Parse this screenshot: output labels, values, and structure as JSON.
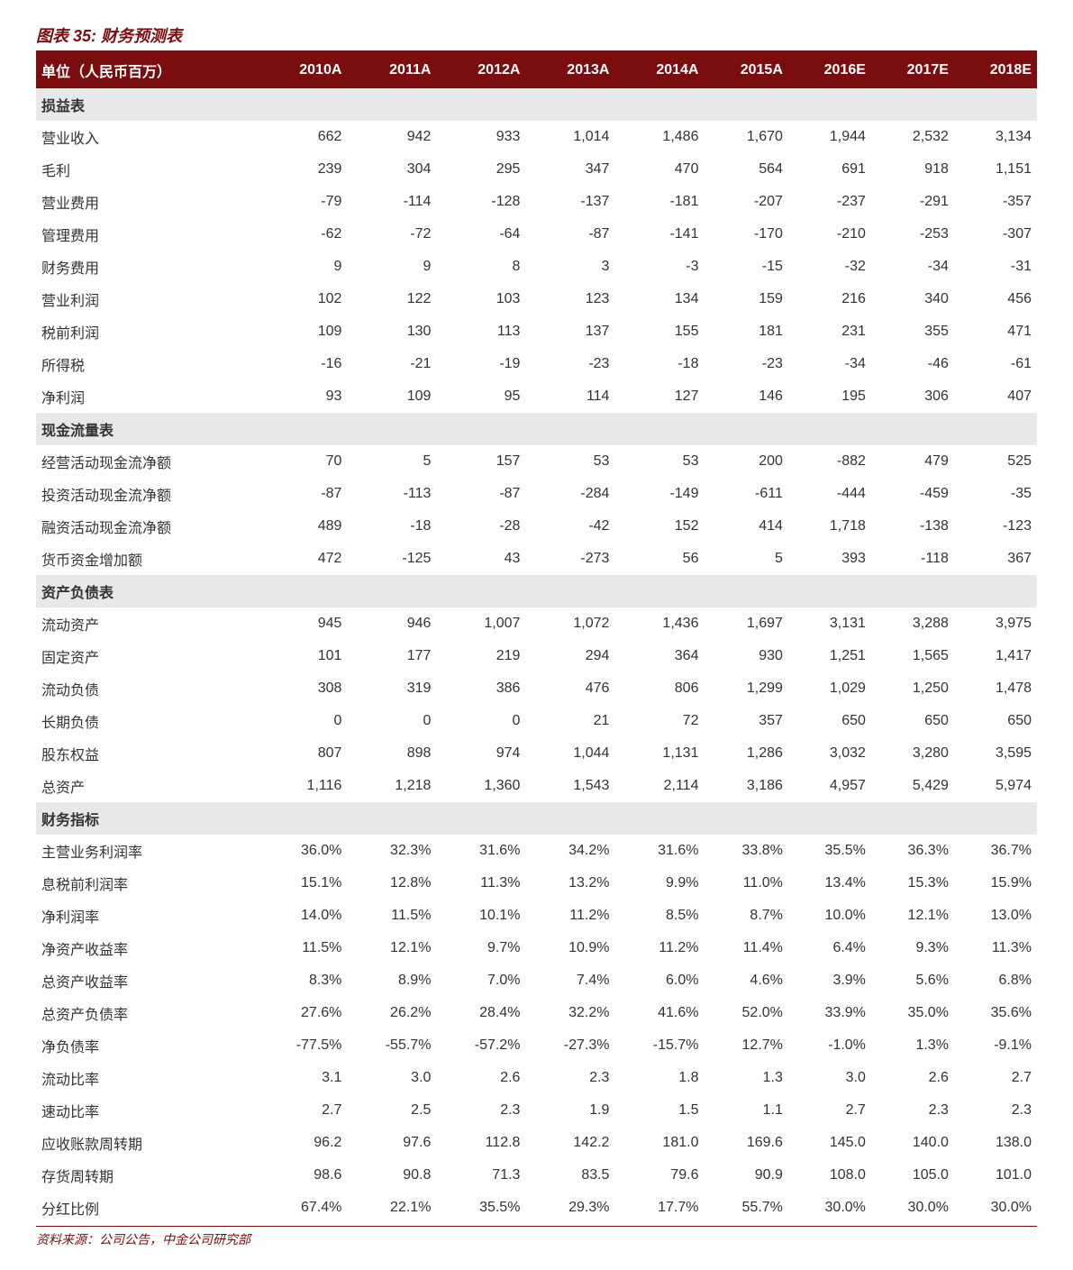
{
  "title": "图表 35: 财务预测表",
  "sourceNote": "资料来源：公司公告，中金公司研究部",
  "colors": {
    "brand": "#7a0e0e",
    "sectionBg": "#e8e8e8",
    "text": "#333333",
    "headerText": "#ffffff",
    "background": "#ffffff"
  },
  "typography": {
    "title_fontsize": 18,
    "body_fontsize": 16,
    "source_fontsize": 14
  },
  "table": {
    "type": "table",
    "headers": [
      "单位（人民币百万）",
      "2010A",
      "2011A",
      "2012A",
      "2013A",
      "2014A",
      "2015A",
      "2016E",
      "2017E",
      "2018E"
    ],
    "col_align": [
      "left",
      "right",
      "right",
      "right",
      "right",
      "right",
      "right",
      "right",
      "right",
      "right"
    ],
    "sections": [
      {
        "label": "损益表",
        "rows": [
          [
            "营业收入",
            "662",
            "942",
            "933",
            "1,014",
            "1,486",
            "1,670",
            "1,944",
            "2,532",
            "3,134"
          ],
          [
            "毛利",
            "239",
            "304",
            "295",
            "347",
            "470",
            "564",
            "691",
            "918",
            "1,151"
          ],
          [
            "营业费用",
            "-79",
            "-114",
            "-128",
            "-137",
            "-181",
            "-207",
            "-237",
            "-291",
            "-357"
          ],
          [
            "管理费用",
            "-62",
            "-72",
            "-64",
            "-87",
            "-141",
            "-170",
            "-210",
            "-253",
            "-307"
          ],
          [
            "财务费用",
            "9",
            "9",
            "8",
            "3",
            "-3",
            "-15",
            "-32",
            "-34",
            "-31"
          ],
          [
            "营业利润",
            "102",
            "122",
            "103",
            "123",
            "134",
            "159",
            "216",
            "340",
            "456"
          ],
          [
            "税前利润",
            "109",
            "130",
            "113",
            "137",
            "155",
            "181",
            "231",
            "355",
            "471"
          ],
          [
            "所得税",
            "-16",
            "-21",
            "-19",
            "-23",
            "-18",
            "-23",
            "-34",
            "-46",
            "-61"
          ],
          [
            "净利润",
            "93",
            "109",
            "95",
            "114",
            "127",
            "146",
            "195",
            "306",
            "407"
          ]
        ]
      },
      {
        "label": "现金流量表",
        "rows": [
          [
            "经营活动现金流净额",
            "70",
            "5",
            "157",
            "53",
            "53",
            "200",
            "-882",
            "479",
            "525"
          ],
          [
            "投资活动现金流净额",
            "-87",
            "-113",
            "-87",
            "-284",
            "-149",
            "-611",
            "-444",
            "-459",
            "-35"
          ],
          [
            "融资活动现金流净额",
            "489",
            "-18",
            "-28",
            "-42",
            "152",
            "414",
            "1,718",
            "-138",
            "-123"
          ],
          [
            "货币资金增加额",
            "472",
            "-125",
            "43",
            "-273",
            "56",
            "5",
            "393",
            "-118",
            "367"
          ]
        ]
      },
      {
        "label": "资产负债表",
        "rows": [
          [
            "流动资产",
            "945",
            "946",
            "1,007",
            "1,072",
            "1,436",
            "1,697",
            "3,131",
            "3,288",
            "3,975"
          ],
          [
            "固定资产",
            "101",
            "177",
            "219",
            "294",
            "364",
            "930",
            "1,251",
            "1,565",
            "1,417"
          ],
          [
            "流动负债",
            "308",
            "319",
            "386",
            "476",
            "806",
            "1,299",
            "1,029",
            "1,250",
            "1,478"
          ],
          [
            "长期负债",
            "0",
            "0",
            "0",
            "21",
            "72",
            "357",
            "650",
            "650",
            "650"
          ],
          [
            "股东权益",
            "807",
            "898",
            "974",
            "1,044",
            "1,131",
            "1,286",
            "3,032",
            "3,280",
            "3,595"
          ],
          [
            "总资产",
            "1,116",
            "1,218",
            "1,360",
            "1,543",
            "2,114",
            "3,186",
            "4,957",
            "5,429",
            "5,974"
          ]
        ]
      },
      {
        "label": "财务指标",
        "rows": [
          [
            "主营业务利润率",
            "36.0%",
            "32.3%",
            "31.6%",
            "34.2%",
            "31.6%",
            "33.8%",
            "35.5%",
            "36.3%",
            "36.7%"
          ],
          [
            "息税前利润率",
            "15.1%",
            "12.8%",
            "11.3%",
            "13.2%",
            "9.9%",
            "11.0%",
            "13.4%",
            "15.3%",
            "15.9%"
          ],
          [
            "净利润率",
            "14.0%",
            "11.5%",
            "10.1%",
            "11.2%",
            "8.5%",
            "8.7%",
            "10.0%",
            "12.1%",
            "13.0%"
          ],
          [
            "净资产收益率",
            "11.5%",
            "12.1%",
            "9.7%",
            "10.9%",
            "11.2%",
            "11.4%",
            "6.4%",
            "9.3%",
            "11.3%"
          ],
          [
            "总资产收益率",
            "8.3%",
            "8.9%",
            "7.0%",
            "7.4%",
            "6.0%",
            "4.6%",
            "3.9%",
            "5.6%",
            "6.8%"
          ],
          [
            "总资产负债率",
            "27.6%",
            "26.2%",
            "28.4%",
            "32.2%",
            "41.6%",
            "52.0%",
            "33.9%",
            "35.0%",
            "35.6%"
          ],
          [
            "净负债率",
            "-77.5%",
            "-55.7%",
            "-57.2%",
            "-27.3%",
            "-15.7%",
            "12.7%",
            "-1.0%",
            "1.3%",
            "-9.1%"
          ],
          [
            "流动比率",
            "3.1",
            "3.0",
            "2.6",
            "2.3",
            "1.8",
            "1.3",
            "3.0",
            "2.6",
            "2.7"
          ],
          [
            "速动比率",
            "2.7",
            "2.5",
            "2.3",
            "1.9",
            "1.5",
            "1.1",
            "2.7",
            "2.3",
            "2.3"
          ],
          [
            "应收账款周转期",
            "96.2",
            "97.6",
            "112.8",
            "142.2",
            "181.0",
            "169.6",
            "145.0",
            "140.0",
            "138.0"
          ],
          [
            "存货周转期",
            "98.6",
            "90.8",
            "71.3",
            "83.5",
            "79.6",
            "90.9",
            "108.0",
            "105.0",
            "101.0"
          ],
          [
            "分红比例",
            "67.4%",
            "22.1%",
            "35.5%",
            "29.3%",
            "17.7%",
            "55.7%",
            "30.0%",
            "30.0%",
            "30.0%"
          ]
        ]
      }
    ]
  }
}
